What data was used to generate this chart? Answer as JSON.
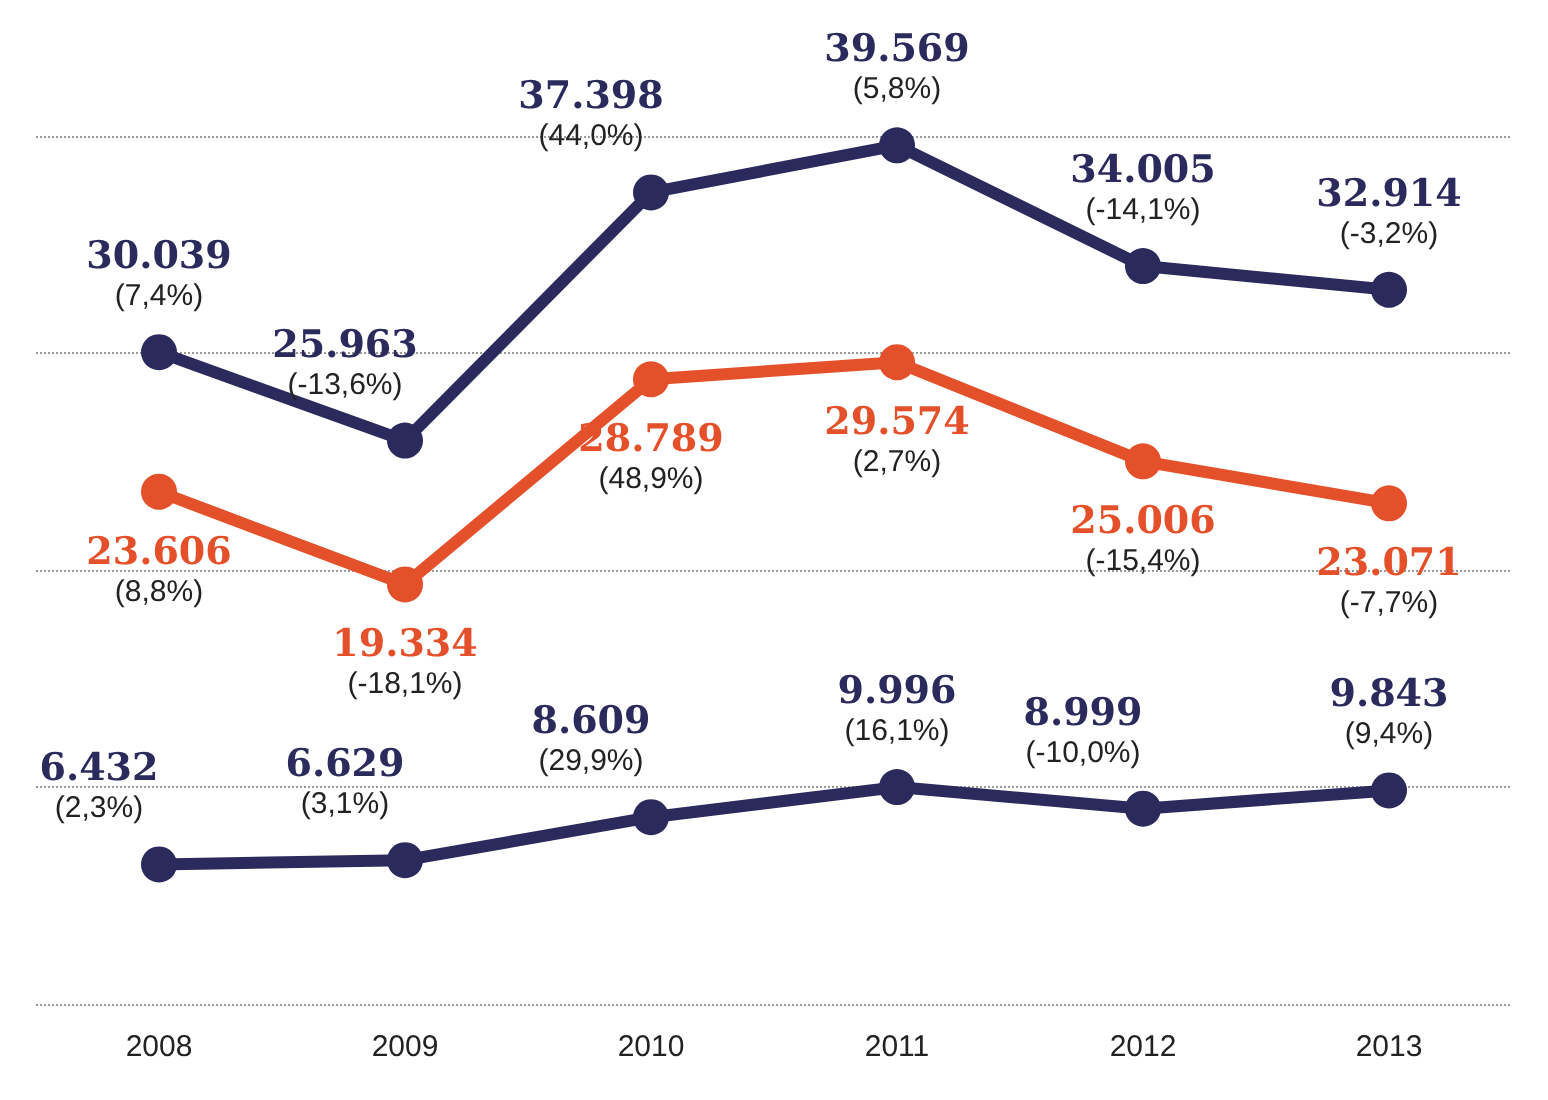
{
  "chart_data": {
    "type": "line",
    "categories": [
      "2008",
      "2009",
      "2010",
      "2011",
      "2012",
      "2013"
    ],
    "series": [
      {
        "color": "#2b2a5c",
        "values": [
          30039,
          25963,
          37398,
          39569,
          34005,
          32914
        ],
        "value_labels": [
          "30.039\n(7,4%)",
          "25.963\n(-13,6%)",
          "37.398\n(44,0%)",
          "39.569\n(5,8%)",
          "34.005\n(-14,1%)",
          "32.914\n(-3,2%)"
        ]
      },
      {
        "color": "#e4502a",
        "values": [
          23606,
          19334,
          28789,
          29574,
          25006,
          23071
        ],
        "value_labels": [
          "23.606\n(8,8%)",
          "19.334\n(-18,1%)",
          "28.789\n(48,9%)",
          "29.574\n(2,7%)",
          "25.006\n(-15,4%)",
          "23.071\n(-7,7%)"
        ]
      },
      {
        "color": "#2b2a5c",
        "values": [
          6432,
          6629,
          8609,
          9996,
          8999,
          9843
        ],
        "value_labels": [
          "6.432\n(2,3%)",
          "6.629\n(3,1%)",
          "8.609\n(29,9%)",
          "9.996\n(16,1%)",
          "8.999\n(-10,0%)",
          "9.843\n(9,4%)"
        ]
      }
    ],
    "grid": "y",
    "marker": "circle",
    "line_style": "solid"
  }
}
